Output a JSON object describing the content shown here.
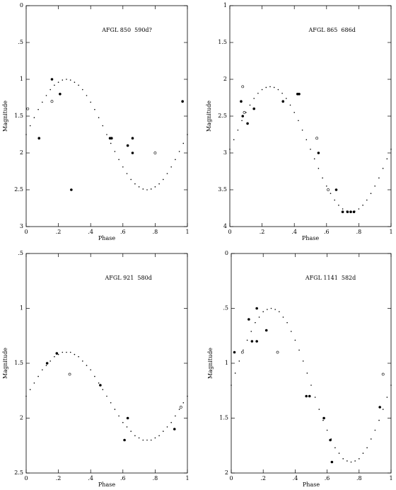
{
  "chart_data": [
    {
      "type": "scatter",
      "title": "AFGL 850  590d?",
      "xlabel": "Phase",
      "ylabel": "Magnitude",
      "xlim": [
        0,
        1
      ],
      "ylim": [
        0,
        3
      ],
      "y_inverted": true,
      "xticks": [
        0,
        {
          "value": 0.2,
          "label": ".2"
        },
        {
          "value": 0.4,
          "label": ".4"
        },
        {
          "value": 0.6,
          "label": ".6"
        },
        {
          "value": 0.8,
          "label": ".8"
        },
        1
      ],
      "yticks": [
        0,
        {
          "value": 0.5,
          "label": ".5"
        },
        1,
        1.5,
        2,
        2.5,
        3
      ],
      "series": [
        {
          "marker": "filled",
          "color": "#000",
          "x": [
            0.08,
            0.16,
            0.21,
            0.28,
            0.52,
            0.53,
            0.63,
            0.66,
            0.66,
            0.97
          ],
          "values": [
            1.8,
            1.0,
            1.2,
            2.5,
            1.8,
            1.8,
            1.9,
            1.8,
            2.0,
            1.3
          ]
        },
        {
          "marker": "open",
          "color": "#000",
          "x": [
            0.01,
            0.16,
            0.8
          ],
          "values": [
            1.4,
            1.3,
            2.0
          ]
        },
        {
          "marker": "dot",
          "color": "#000",
          "x": [
            0,
            0.025,
            0.05,
            0.075,
            0.1,
            0.125,
            0.15,
            0.175,
            0.2,
            0.225,
            0.25,
            0.275,
            0.3,
            0.325,
            0.35,
            0.375,
            0.4,
            0.425,
            0.45,
            0.475,
            0.5,
            0.525,
            0.55,
            0.575,
            0.6,
            0.625,
            0.65,
            0.675,
            0.7,
            0.725,
            0.75,
            0.775,
            0.8,
            0.825,
            0.85,
            0.875,
            0.9,
            0.925,
            0.95,
            0.975,
            1
          ],
          "values": [
            1.75,
            1.63,
            1.52,
            1.41,
            1.31,
            1.22,
            1.14,
            1.08,
            1.04,
            1.01,
            1.0,
            1.01,
            1.04,
            1.08,
            1.14,
            1.22,
            1.31,
            1.41,
            1.52,
            1.63,
            1.75,
            1.87,
            1.98,
            2.09,
            2.19,
            2.28,
            2.36,
            2.42,
            2.46,
            2.49,
            2.5,
            2.49,
            2.46,
            2.42,
            2.36,
            2.28,
            2.19,
            2.09,
            1.98,
            1.87,
            1.75
          ]
        }
      ]
    },
    {
      "type": "scatter",
      "title": "AFGL 865  686d",
      "xlabel": "Phase",
      "ylabel": "Magnitude",
      "xlim": [
        0,
        1
      ],
      "ylim": [
        1,
        4
      ],
      "y_inverted": true,
      "xticks": [
        0,
        {
          "value": 0.2,
          "label": ".2"
        },
        {
          "value": 0.4,
          "label": ".4"
        },
        {
          "value": 0.6,
          "label": ".6"
        },
        {
          "value": 0.8,
          "label": ".8"
        },
        1
      ],
      "yticks": [
        1,
        1.5,
        2,
        2.5,
        3,
        3.5,
        4
      ],
      "series": [
        {
          "marker": "filled",
          "color": "#000",
          "x": [
            0.07,
            0.08,
            0.11,
            0.15,
            0.33,
            0.42,
            0.43,
            0.55,
            0.66,
            0.7,
            0.73,
            0.75,
            0.77
          ],
          "values": [
            2.3,
            2.5,
            2.6,
            2.4,
            2.3,
            2.2,
            2.2,
            3.0,
            3.5,
            3.8,
            3.8,
            3.8,
            3.8
          ]
        },
        {
          "marker": "open",
          "color": "#000",
          "x": [
            0.08,
            0.09,
            0.54,
            0.61
          ],
          "values": [
            2.1,
            2.45,
            2.8,
            3.5
          ]
        },
        {
          "marker": "dot",
          "color": "#000",
          "x": [
            0,
            0.025,
            0.05,
            0.075,
            0.1,
            0.125,
            0.15,
            0.175,
            0.2,
            0.225,
            0.25,
            0.275,
            0.3,
            0.325,
            0.35,
            0.375,
            0.4,
            0.425,
            0.45,
            0.475,
            0.5,
            0.525,
            0.55,
            0.575,
            0.6,
            0.625,
            0.65,
            0.675,
            0.7,
            0.725,
            0.75,
            0.775,
            0.8,
            0.825,
            0.85,
            0.875,
            0.9,
            0.925,
            0.95,
            0.975,
            1
          ],
          "values": [
            2.95,
            2.82,
            2.69,
            2.56,
            2.45,
            2.35,
            2.26,
            2.19,
            2.14,
            2.11,
            2.1,
            2.11,
            2.14,
            2.19,
            2.26,
            2.35,
            2.45,
            2.56,
            2.69,
            2.82,
            2.95,
            3.08,
            3.21,
            3.34,
            3.45,
            3.55,
            3.64,
            3.71,
            3.76,
            3.79,
            3.8,
            3.79,
            3.76,
            3.71,
            3.64,
            3.55,
            3.45,
            3.34,
            3.21,
            3.08,
            2.95
          ]
        }
      ]
    },
    {
      "type": "scatter",
      "title": "AFGL 921  580d",
      "xlabel": "Phase",
      "ylabel": "Magnitude",
      "xlim": [
        0,
        1
      ],
      "ylim": [
        0.5,
        2.5
      ],
      "y_inverted": true,
      "xticks": [
        0,
        {
          "value": 0.2,
          "label": ".2"
        },
        {
          "value": 0.4,
          "label": ".4"
        },
        {
          "value": 0.6,
          "label": ".6"
        },
        {
          "value": 0.8,
          "label": ".8"
        },
        1
      ],
      "yticks": [
        {
          "value": 0.5,
          "label": ".5"
        },
        1,
        1.5,
        2,
        2.5
      ],
      "series": [
        {
          "marker": "filled",
          "color": "#000",
          "x": [
            0.13,
            0.19,
            0.46,
            0.63,
            0.61,
            0.92
          ],
          "values": [
            1.5,
            1.41,
            1.7,
            2.0,
            2.2,
            2.1
          ]
        },
        {
          "marker": "open",
          "color": "#000",
          "x": [
            0.27,
            0.96
          ],
          "values": [
            1.6,
            1.9
          ]
        },
        {
          "marker": "dot",
          "color": "#000",
          "x": [
            0,
            0.025,
            0.05,
            0.075,
            0.1,
            0.125,
            0.15,
            0.175,
            0.2,
            0.225,
            0.25,
            0.275,
            0.3,
            0.325,
            0.35,
            0.375,
            0.4,
            0.425,
            0.45,
            0.475,
            0.5,
            0.525,
            0.55,
            0.575,
            0.6,
            0.625,
            0.65,
            0.675,
            0.7,
            0.725,
            0.75,
            0.775,
            0.8,
            0.825,
            0.85,
            0.875,
            0.9,
            0.925,
            0.95,
            0.975,
            1
          ],
          "values": [
            1.8,
            1.74,
            1.68,
            1.62,
            1.56,
            1.52,
            1.48,
            1.44,
            1.42,
            1.4,
            1.4,
            1.4,
            1.42,
            1.44,
            1.48,
            1.52,
            1.56,
            1.62,
            1.68,
            1.74,
            1.8,
            1.86,
            1.92,
            1.98,
            2.04,
            2.08,
            2.12,
            2.16,
            2.18,
            2.2,
            2.2,
            2.2,
            2.18,
            2.16,
            2.12,
            2.08,
            2.04,
            1.98,
            1.92,
            1.86,
            1.8
          ]
        }
      ]
    },
    {
      "type": "scatter",
      "title": "AFGL 1141  582d",
      "xlabel": "Phase",
      "ylabel": "Magnitude",
      "xlim": [
        0,
        1
      ],
      "ylim": [
        0,
        2
      ],
      "y_inverted": true,
      "xticks": [
        0,
        {
          "value": 0.2,
          "label": ".2"
        },
        {
          "value": 0.4,
          "label": ".4"
        },
        {
          "value": 0.6,
          "label": ".6"
        },
        {
          "value": 0.8,
          "label": ".8"
        },
        1
      ],
      "yticks": [
        0,
        {
          "value": 0.5,
          "label": ".5"
        },
        1,
        1.5,
        2
      ],
      "series": [
        {
          "marker": "filled",
          "color": "#000",
          "x": [
            0.02,
            0.11,
            0.13,
            0.16,
            0.16,
            0.22,
            0.47,
            0.49,
            0.58,
            0.62,
            0.63,
            0.93
          ],
          "values": [
            0.9,
            0.6,
            0.8,
            0.8,
            0.5,
            0.7,
            1.3,
            1.3,
            1.5,
            1.7,
            1.9,
            1.4
          ]
        },
        {
          "marker": "open",
          "color": "#000",
          "x": [
            0.07,
            0.29,
            0.95
          ],
          "values": [
            0.9,
            0.9,
            1.1
          ]
        },
        {
          "marker": "dot",
          "color": "#000",
          "x": [
            0,
            0.025,
            0.05,
            0.075,
            0.1,
            0.125,
            0.15,
            0.175,
            0.2,
            0.225,
            0.25,
            0.275,
            0.3,
            0.325,
            0.35,
            0.375,
            0.4,
            0.425,
            0.45,
            0.475,
            0.5,
            0.525,
            0.55,
            0.575,
            0.6,
            0.625,
            0.65,
            0.675,
            0.7,
            0.725,
            0.75,
            0.775,
            0.8,
            0.825,
            0.85,
            0.875,
            0.9,
            0.925,
            0.95,
            0.975,
            1
          ],
          "values": [
            1.2,
            1.09,
            0.98,
            0.88,
            0.79,
            0.71,
            0.63,
            0.58,
            0.53,
            0.51,
            0.5,
            0.51,
            0.53,
            0.58,
            0.63,
            0.71,
            0.79,
            0.88,
            0.98,
            1.09,
            1.2,
            1.31,
            1.42,
            1.52,
            1.61,
            1.69,
            1.77,
            1.82,
            1.87,
            1.89,
            1.9,
            1.89,
            1.87,
            1.82,
            1.77,
            1.69,
            1.61,
            1.52,
            1.42,
            1.31,
            1.2
          ]
        }
      ]
    }
  ]
}
